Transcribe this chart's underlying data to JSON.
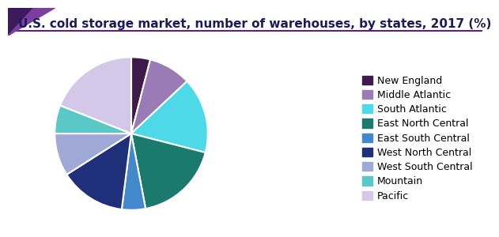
{
  "title": "U.S. cold storage market, number of warehouses, by states, 2017 (%)",
  "labels": [
    "New England",
    "Middle Atlantic",
    "South Atlantic",
    "East North Central",
    "East South Central",
    "West North Central",
    "West South Central",
    "Mountain",
    "Pacific"
  ],
  "values": [
    4,
    9,
    16,
    18,
    5,
    14,
    9,
    6,
    19
  ],
  "colors": [
    "#3d1a4a",
    "#9b7bb5",
    "#4dd9e8",
    "#1a7a6e",
    "#4488cc",
    "#1f2f7a",
    "#a0a8d8",
    "#5bc8c8",
    "#d4c8e8"
  ],
  "background_color": "#ffffff",
  "title_fontsize": 11,
  "legend_fontsize": 9,
  "startangle": 90,
  "header_line_color": "#5a2080",
  "triangle1_color": "#3d1a5c",
  "triangle2_color": "#7b3fa0",
  "title_color": "#1a1a5c"
}
